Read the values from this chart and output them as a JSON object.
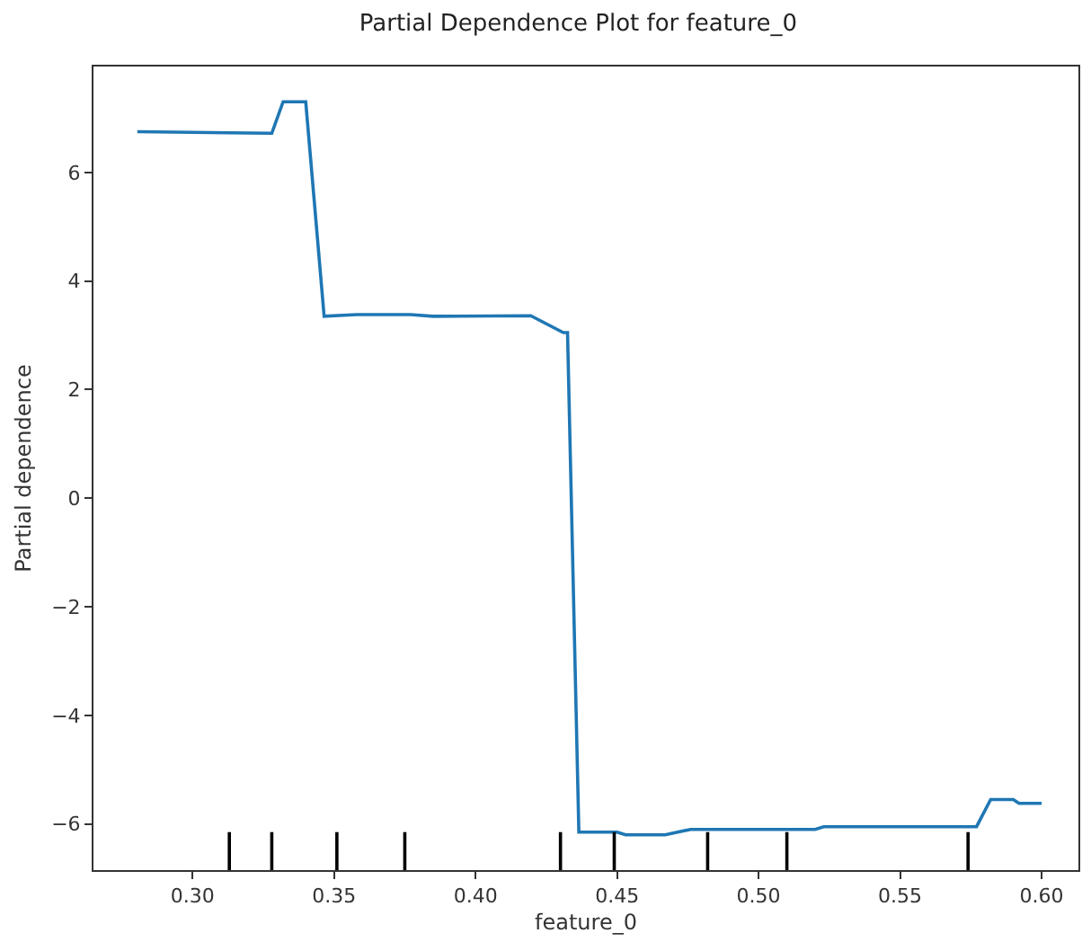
{
  "chart_data": {
    "type": "line",
    "title": "Partial Dependence Plot for feature_0",
    "xlabel": "feature_0",
    "ylabel": "Partial dependence",
    "series": [
      {
        "color": "#1f77b4",
        "x": [
          0.2805,
          0.328,
          0.332,
          0.34,
          0.3465,
          0.358,
          0.377,
          0.385,
          0.4195,
          0.431,
          0.4325,
          0.4365,
          0.45,
          0.453,
          0.467,
          0.476,
          0.505,
          0.52,
          0.523,
          0.577,
          0.582,
          0.59,
          0.592,
          0.6
        ],
        "values": [
          6.75,
          6.72,
          7.3,
          7.3,
          3.35,
          3.38,
          3.38,
          3.35,
          3.36,
          3.05,
          3.05,
          -6.15,
          -6.15,
          -6.2,
          -6.2,
          -6.1,
          -6.1,
          -6.1,
          -6.05,
          -6.05,
          -5.55,
          -5.55,
          -5.62,
          -5.62
        ]
      },
      {
        "color": "#000000",
        "x": [
          0.313,
          0.313
        ],
        "values": [
          -6.85,
          -6.15
        ]
      },
      {
        "color": "#000000",
        "x": [
          0.328,
          0.328
        ],
        "values": [
          -6.85,
          -6.15
        ]
      },
      {
        "color": "#000000",
        "x": [
          0.351,
          0.351
        ],
        "values": [
          -6.85,
          -6.15
        ]
      },
      {
        "color": "#000000",
        "x": [
          0.375,
          0.375
        ],
        "values": [
          -6.85,
          -6.15
        ]
      },
      {
        "color": "#000000",
        "x": [
          0.43,
          0.43
        ],
        "values": [
          -6.85,
          -6.15
        ]
      },
      {
        "color": "#000000",
        "x": [
          0.449,
          0.449
        ],
        "values": [
          -6.85,
          -6.15
        ]
      },
      {
        "color": "#000000",
        "x": [
          0.482,
          0.482
        ],
        "values": [
          -6.85,
          -6.15
        ]
      },
      {
        "color": "#000000",
        "x": [
          0.51,
          0.51
        ],
        "values": [
          -6.85,
          -6.15
        ]
      },
      {
        "color": "#000000",
        "x": [
          0.574,
          0.574
        ],
        "values": [
          -6.85,
          -6.15
        ]
      }
    ],
    "xlim": [
      0.265,
      0.613
    ],
    "ylim": [
      -6.85,
      7.95
    ],
    "xticks": [
      {
        "value": 0.3,
        "label": "0.30"
      },
      {
        "value": 0.35,
        "label": "0.35"
      },
      {
        "value": 0.4,
        "label": "0.40"
      },
      {
        "value": 0.45,
        "label": "0.45"
      },
      {
        "value": 0.5,
        "label": "0.50"
      },
      {
        "value": 0.55,
        "label": "0.55"
      },
      {
        "value": 0.6,
        "label": "0.60"
      }
    ],
    "yticks": [
      {
        "value": -6,
        "label": "−6"
      },
      {
        "value": -4,
        "label": "−4"
      },
      {
        "value": -2,
        "label": "−2"
      },
      0,
      2,
      4,
      6
    ]
  }
}
